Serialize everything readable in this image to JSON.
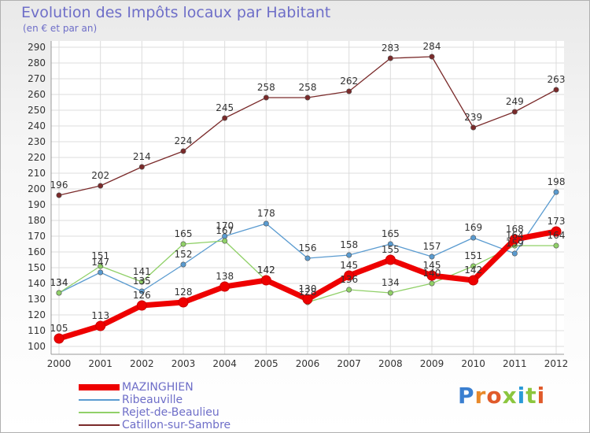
{
  "title": "Evolution des Impôts locaux par Habitant",
  "subtitle": "(en € et par an)",
  "logo": {
    "text": "Proxiti",
    "letters": [
      {
        "ch": "P",
        "color": "#3a7fd0"
      },
      {
        "ch": "r",
        "color": "#e8892a"
      },
      {
        "ch": "o",
        "color": "#e05a2a"
      },
      {
        "ch": "x",
        "color": "#8cc63f"
      },
      {
        "ch": "i",
        "color": "#2a9ad8"
      },
      {
        "ch": "t",
        "color": "#8cc63f"
      },
      {
        "ch": "i",
        "color": "#e05a2a"
      }
    ]
  },
  "chart_data": {
    "type": "line",
    "title": "Evolution des Impôts locaux par Habitant",
    "subtitle": "(en € et par an)",
    "xlabel": "",
    "ylabel": "",
    "categories": [
      "2000",
      "2001",
      "2002",
      "2003",
      "2004",
      "2005",
      "2006",
      "2007",
      "2008",
      "2009",
      "2010",
      "2011",
      "2012"
    ],
    "ylim": [
      100,
      290
    ],
    "yticks": [
      100,
      110,
      120,
      130,
      140,
      150,
      160,
      170,
      180,
      190,
      200,
      210,
      220,
      230,
      240,
      250,
      260,
      270,
      280,
      290
    ],
    "grid": true,
    "legend_position": "bottom-left",
    "series": [
      {
        "name": "MAZINGHIEN",
        "color": "#ee0000",
        "values": [
          105,
          113,
          126,
          128,
          138,
          142,
          130,
          145,
          155,
          145,
          142,
          168,
          173
        ]
      },
      {
        "name": "Ribeauville",
        "color": "#5a9bd0",
        "values": [
          134,
          147,
          135,
          152,
          170,
          178,
          156,
          158,
          165,
          157,
          169,
          159,
          198
        ]
      },
      {
        "name": "Rejet-de-Beaulieu",
        "color": "#90d068",
        "values": [
          134,
          151,
          141,
          165,
          167,
          142,
          128,
          136,
          134,
          140,
          151,
          164,
          164
        ]
      },
      {
        "name": "Catillon-sur-Sambre",
        "color": "#7a2a2a",
        "values": [
          196,
          202,
          214,
          224,
          245,
          258,
          258,
          262,
          283,
          284,
          239,
          249,
          263
        ]
      }
    ]
  }
}
